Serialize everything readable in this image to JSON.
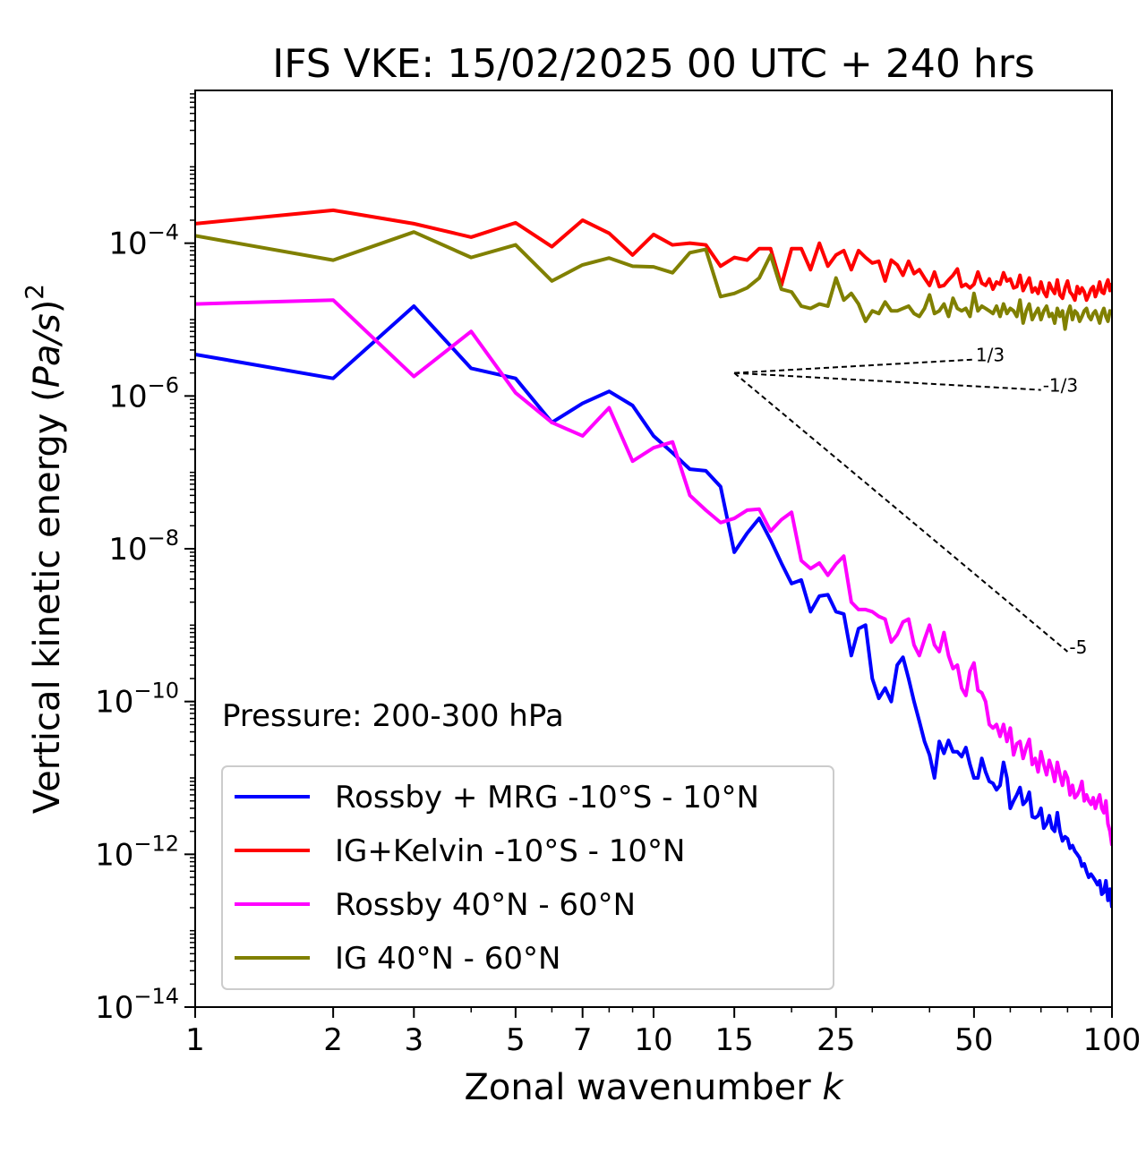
{
  "chart_data": {
    "type": "line",
    "title": "IFS VKE: 15/02/2025 00 UTC + 240 hrs",
    "xlabel": "Zonal wavenumber",
    "xlabel_var": "k",
    "ylabel": "Vertical kinetic energy (",
    "ylabel_var": "Pa/s",
    "ylabel_end": ")",
    "ylabel_sup": "2",
    "xscale": "log",
    "yscale": "log",
    "xlim": [
      1,
      100
    ],
    "ylim": [
      1e-14,
      0.01
    ],
    "xticks": [
      1,
      2,
      3,
      5,
      7,
      10,
      15,
      25,
      50,
      100
    ],
    "xtick_labels": [
      "1",
      "2",
      "3",
      "5",
      "7",
      "10",
      "15",
      "25",
      "50",
      "100"
    ],
    "yticks": [
      1e-14,
      1e-12,
      1e-10,
      1e-08,
      1e-06,
      0.0001
    ],
    "ytick_base": "10",
    "ytick_exponents": [
      "−14",
      "−12",
      "−10",
      "−8",
      "−6",
      "−4"
    ],
    "annotation": "Pressure: 200-300 hPa",
    "legend_position": "lower-left",
    "grid": false,
    "series": [
      {
        "name": "Rossby + MRG -10°S - 10°N",
        "color": "#0000ff",
        "x": [
          1,
          2,
          3,
          4,
          5,
          6,
          7,
          8,
          9,
          10,
          11,
          12,
          13,
          14,
          15,
          16,
          17,
          18,
          19,
          20,
          21,
          22,
          23,
          24,
          25,
          26,
          27,
          28,
          29,
          30,
          31,
          32,
          33,
          34,
          35,
          36,
          37,
          38,
          39,
          40,
          41,
          42,
          43,
          44,
          45,
          46,
          47,
          48,
          49,
          50,
          51,
          52,
          53,
          54,
          55,
          56,
          57,
          58,
          59,
          60,
          61,
          62,
          63,
          64,
          65,
          66,
          67,
          68,
          69,
          70,
          71,
          72,
          73,
          74,
          75,
          76,
          77,
          78,
          79,
          80,
          81,
          82,
          83,
          84,
          85,
          86,
          87,
          88,
          89,
          90,
          91,
          92,
          93,
          94,
          95,
          96,
          97,
          98,
          99,
          100
        ],
        "y": [
          3.5e-06,
          1.7e-06,
          1.5e-05,
          2.3e-06,
          1.7e-06,
          4.5e-07,
          8e-07,
          1.15e-06,
          7.5e-07,
          3e-07,
          1.8e-07,
          1.1e-07,
          1.05e-07,
          6.5e-08,
          9e-09,
          1.6e-08,
          2.5e-08,
          1.3e-08,
          6.5e-09,
          3.5e-09,
          3.9e-09,
          1.5e-09,
          2.4e-09,
          2.5e-09,
          1.5e-09,
          1.4e-09,
          4e-10,
          9e-10,
          1e-09,
          2e-10,
          1.1e-10,
          1.5e-10,
          1e-10,
          3e-10,
          3.8e-10,
          2e-10,
          1e-10,
          5.5e-11,
          3e-11,
          2e-11,
          1e-11,
          3e-11,
          2.1e-11,
          3.1e-11,
          2.2e-11,
          2.2e-11,
          1.9e-11,
          2.5e-11,
          1.5e-11,
          1e-11,
          1e-11,
          1.8e-11,
          1.2e-11,
          9e-12,
          8.5e-12,
          7e-12,
          8e-12,
          1.6e-11,
          1e-11,
          4e-12,
          5e-12,
          6e-12,
          7.5e-12,
          4.5e-12,
          5e-12,
          6.5e-12,
          3.1e-12,
          3e-12,
          3.2e-12,
          4e-12,
          2.2e-12,
          2.5e-12,
          3.2e-12,
          2.2e-12,
          2e-12,
          3.5e-12,
          2e-12,
          1.5e-12,
          1.7e-12,
          1.6e-12,
          1.2e-12,
          1.3e-12,
          1.1e-12,
          1e-12,
          9e-13,
          7e-13,
          7.5e-13,
          6e-13,
          5e-13,
          5.5e-13,
          5e-13,
          4.5e-13,
          4e-13,
          4.5e-13,
          3e-13,
          3.2e-13,
          4.5e-13,
          2.5e-13,
          3.5e-13,
          2e-13
        ]
      },
      {
        "name": "IG+Kelvin -10°S - 10°N",
        "color": "#ff0000",
        "x": [
          1,
          2,
          3,
          4,
          5,
          6,
          7,
          8,
          9,
          10,
          11,
          12,
          13,
          14,
          15,
          16,
          17,
          18,
          19,
          20,
          21,
          22,
          23,
          24,
          25,
          26,
          27,
          28,
          29,
          30,
          31,
          32,
          33,
          34,
          35,
          36,
          37,
          38,
          39,
          40,
          41,
          42,
          43,
          44,
          45,
          46,
          47,
          48,
          49,
          50,
          51,
          52,
          53,
          54,
          55,
          56,
          57,
          58,
          59,
          60,
          61,
          62,
          63,
          64,
          65,
          66,
          67,
          68,
          69,
          70,
          71,
          72,
          73,
          74,
          75,
          76,
          77,
          78,
          79,
          80,
          81,
          82,
          83,
          84,
          85,
          86,
          87,
          88,
          89,
          90,
          91,
          92,
          93,
          94,
          95,
          96,
          97,
          98,
          99,
          100
        ],
        "y": [
          0.00018,
          0.00027,
          0.00018,
          0.00012,
          0.000185,
          9e-05,
          0.0002,
          0.000135,
          7e-05,
          0.00013,
          9.5e-05,
          0.0001,
          9.5e-05,
          5e-05,
          6.5e-05,
          6e-05,
          8.5e-05,
          8.5e-05,
          2.8e-05,
          8.5e-05,
          8.5e-05,
          4.5e-05,
          0.0001,
          5e-05,
          7e-05,
          8e-05,
          4.5e-05,
          8e-05,
          6.5e-05,
          5.5e-05,
          5.8e-05,
          3.2e-05,
          6e-05,
          5.2e-05,
          3.8e-05,
          5.8e-05,
          4e-05,
          4.5e-05,
          3.5e-05,
          2.8e-05,
          4.2e-05,
          2.7e-05,
          2.8e-05,
          3.3e-05,
          3.8e-05,
          4.6e-05,
          2.7e-05,
          2.9e-05,
          2.6e-05,
          2.9e-05,
          4.2e-05,
          3e-05,
          2.8e-05,
          3.4e-05,
          2.5e-05,
          3.1e-05,
          2.9e-05,
          4.1e-05,
          3.2e-05,
          3.4e-05,
          2.6e-05,
          2.7e-05,
          3.8e-05,
          2.4e-05,
          2.9e-05,
          3.5e-05,
          2.3e-05,
          2.6e-05,
          2.2e-05,
          3.1e-05,
          2.3e-05,
          2e-05,
          3e-05,
          2.5e-05,
          2.2e-05,
          3.3e-05,
          2.1e-05,
          1.9e-05,
          2.6e-05,
          3.2e-05,
          2.3e-05,
          2.1e-05,
          1.8e-05,
          2.7e-05,
          2.2e-05,
          2.6e-05,
          2.3e-05,
          1.8e-05,
          2.1e-05,
          2.5e-05,
          2.7e-05,
          2e-05,
          2.4e-05,
          3.1e-05,
          2.3e-05,
          2.2e-05,
          2.8e-05,
          3.3e-05,
          2.4e-05,
          3e-05
        ]
      },
      {
        "name": "Rossby 40°N - 60°N",
        "color": "#ff00ff",
        "x": [
          1,
          2,
          3,
          4,
          5,
          6,
          7,
          8,
          9,
          10,
          11,
          12,
          13,
          14,
          15,
          16,
          17,
          18,
          19,
          20,
          21,
          22,
          23,
          24,
          25,
          26,
          27,
          28,
          29,
          30,
          31,
          32,
          33,
          34,
          35,
          36,
          37,
          38,
          39,
          40,
          41,
          42,
          43,
          44,
          45,
          46,
          47,
          48,
          49,
          50,
          51,
          52,
          53,
          54,
          55,
          56,
          57,
          58,
          59,
          60,
          61,
          62,
          63,
          64,
          65,
          66,
          67,
          68,
          69,
          70,
          71,
          72,
          73,
          74,
          75,
          76,
          77,
          78,
          79,
          80,
          81,
          82,
          83,
          84,
          85,
          86,
          87,
          88,
          89,
          90,
          91,
          92,
          93,
          94,
          95,
          96,
          97,
          98,
          99,
          100
        ],
        "y": [
          1.6e-05,
          1.8e-05,
          1.8e-06,
          7e-06,
          1.1e-06,
          4.5e-07,
          3e-07,
          7e-07,
          1.4e-07,
          2.1e-07,
          2.5e-07,
          5e-08,
          3.2e-08,
          2.2e-08,
          2.5e-08,
          3.2e-08,
          3.3e-08,
          1.7e-08,
          2.4e-08,
          3e-08,
          7e-09,
          5.5e-09,
          6.5e-09,
          4.5e-09,
          6.3e-09,
          8e-09,
          2e-09,
          1.6e-09,
          1.6e-09,
          1.5e-09,
          1.3e-09,
          1.2e-09,
          6e-10,
          7.5e-10,
          1.1e-09,
          1.2e-09,
          5.5e-10,
          4e-10,
          6.5e-10,
          1e-09,
          5.5e-10,
          4.5e-10,
          8e-10,
          4e-10,
          2.7e-10,
          3e-10,
          1.5e-10,
          1.2e-10,
          2.5e-10,
          3.2e-10,
          1.4e-10,
          1.3e-10,
          1e-10,
          5e-11,
          4.5e-11,
          5e-11,
          3.5e-11,
          5e-11,
          3e-11,
          4.5e-11,
          2e-11,
          2.8e-11,
          3e-11,
          1.8e-11,
          2.5e-11,
          3.2e-11,
          1.5e-11,
          1.8e-11,
          1.2e-11,
          2.2e-11,
          1.5e-11,
          1.1e-11,
          1.7e-11,
          1.3e-11,
          9e-12,
          1.6e-11,
          1.1e-11,
          8e-12,
          1.2e-11,
          1e-11,
          6e-12,
          8e-12,
          5.5e-12,
          6e-12,
          7e-12,
          9e-12,
          5e-12,
          6e-12,
          5e-12,
          4.5e-12,
          5.5e-12,
          4e-12,
          5e-12,
          6e-12,
          4e-12,
          3.5e-12,
          5e-12,
          2.5e-12,
          2e-12,
          1.3e-12
        ]
      },
      {
        "name": "IG 40°N - 60°N",
        "color": "#808000",
        "x": [
          1,
          2,
          3,
          4,
          5,
          6,
          7,
          8,
          9,
          10,
          11,
          12,
          13,
          14,
          15,
          16,
          17,
          18,
          19,
          20,
          21,
          22,
          23,
          24,
          25,
          26,
          27,
          28,
          29,
          30,
          31,
          32,
          33,
          34,
          35,
          36,
          37,
          38,
          39,
          40,
          41,
          42,
          43,
          44,
          45,
          46,
          47,
          48,
          49,
          50,
          51,
          52,
          53,
          54,
          55,
          56,
          57,
          58,
          59,
          60,
          61,
          62,
          63,
          64,
          65,
          66,
          67,
          68,
          69,
          70,
          71,
          72,
          73,
          74,
          75,
          76,
          77,
          78,
          79,
          80,
          81,
          82,
          83,
          84,
          85,
          86,
          87,
          88,
          89,
          90,
          91,
          92,
          93,
          94,
          95,
          96,
          97,
          98,
          99,
          100
        ],
        "y": [
          0.000125,
          6e-05,
          0.00014,
          6.5e-05,
          9.5e-05,
          3.2e-05,
          5.2e-05,
          6.4e-05,
          5e-05,
          4.9e-05,
          4.1e-05,
          7.5e-05,
          8.3e-05,
          2e-05,
          2.2e-05,
          2.6e-05,
          3.5e-05,
          7e-05,
          2.5e-05,
          2.3e-05,
          1.5e-05,
          1.4e-05,
          1.6e-05,
          1.5e-05,
          3.5e-05,
          1.8e-05,
          2.2e-05,
          1.6e-05,
          9.5e-06,
          1.3e-05,
          1.2e-05,
          1.7e-05,
          1.3e-05,
          1.3e-05,
          1.4e-05,
          1.5e-05,
          1.2e-05,
          1.1e-05,
          1.4e-05,
          2.1e-05,
          1.2e-05,
          1.3e-05,
          1.6e-05,
          1.1e-05,
          1.9e-05,
          1.4e-05,
          1.3e-05,
          1.4e-05,
          1.1e-05,
          2.2e-05,
          1.3e-05,
          1.5e-05,
          1.4e-05,
          1.3e-05,
          1.2e-05,
          1.5e-05,
          1.1e-05,
          1.6e-05,
          1.2e-05,
          1.4e-05,
          1.3e-05,
          1.1e-05,
          1.8e-05,
          9e-06,
          1.3e-05,
          1.6e-05,
          1e-05,
          1.2e-05,
          1.4e-05,
          1e-05,
          1.3e-05,
          1.5e-05,
          1.1e-05,
          1.2e-05,
          9e-06,
          1.4e-05,
          1.1e-05,
          1.3e-05,
          7.5e-06,
          1.2e-05,
          1.5e-05,
          1e-05,
          1.3e-05,
          1.2e-05,
          9.5e-06,
          1.1e-05,
          1.3e-05,
          1.4e-05,
          1.1e-05,
          1e-05,
          1.2e-05,
          1.3e-05,
          1.1e-05,
          9e-06,
          1.2e-05,
          1.4e-05,
          1.1e-05,
          9.5e-06,
          1.3e-05,
          1.2e-05
        ]
      }
    ],
    "reference_lines": [
      {
        "label": "1/3",
        "x": [
          15,
          50
        ],
        "y": [
          2e-06,
          3e-06
        ],
        "color": "#000000"
      },
      {
        "label": "-1/3",
        "x": [
          15,
          70
        ],
        "y": [
          2e-06,
          1.2e-06
        ],
        "color": "#000000"
      },
      {
        "label": "-5",
        "x": [
          15,
          80
        ],
        "y": [
          2e-06,
          4.5e-10
        ],
        "color": "#000000"
      }
    ]
  }
}
